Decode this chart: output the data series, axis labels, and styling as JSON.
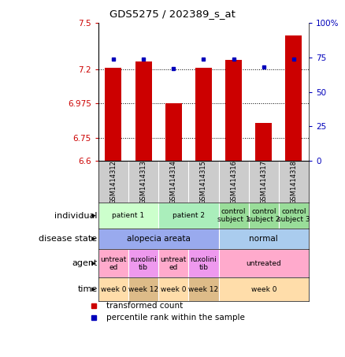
{
  "title": "GDS5275 / 202389_s_at",
  "samples": [
    "GSM1414312",
    "GSM1414313",
    "GSM1414314",
    "GSM1414315",
    "GSM1414316",
    "GSM1414317",
    "GSM1414318"
  ],
  "bar_values": [
    7.21,
    7.25,
    6.975,
    7.21,
    7.26,
    6.845,
    7.42
  ],
  "percentile_values": [
    74,
    74,
    67,
    74,
    74,
    68,
    74
  ],
  "ylim_left": [
    6.6,
    7.5
  ],
  "ylim_right": [
    0,
    100
  ],
  "yticks_left": [
    6.6,
    6.75,
    6.975,
    7.2,
    7.5
  ],
  "ytick_labels_left": [
    "6.6",
    "6.75",
    "6.975",
    "7.2",
    "7.5"
  ],
  "yticks_right": [
    0,
    25,
    50,
    75,
    100
  ],
  "ytick_labels_right": [
    "0",
    "25",
    "50",
    "75",
    "100%"
  ],
  "bar_color": "#cc0000",
  "dot_color": "#0000bb",
  "individual_groups": [
    {
      "label": "patient 1",
      "cols": [
        0,
        1
      ],
      "color": "#ccffcc"
    },
    {
      "label": "patient 2",
      "cols": [
        2,
        3
      ],
      "color": "#aaeebb"
    },
    {
      "label": "control\nsubject 1",
      "cols": [
        4
      ],
      "color": "#99dd99"
    },
    {
      "label": "control\nsubject 2",
      "cols": [
        5
      ],
      "color": "#99dd99"
    },
    {
      "label": "control\nsubject 3",
      "cols": [
        6
      ],
      "color": "#99dd99"
    }
  ],
  "disease_groups": [
    {
      "label": "alopecia areata",
      "cols": [
        0,
        1,
        2,
        3
      ],
      "color": "#99aaee"
    },
    {
      "label": "normal",
      "cols": [
        4,
        5,
        6
      ],
      "color": "#aaccee"
    }
  ],
  "agent_groups": [
    {
      "label": "untreat\ned",
      "cols": [
        0
      ],
      "color": "#ffaacc"
    },
    {
      "label": "ruxolini\ntib",
      "cols": [
        1
      ],
      "color": "#ee99ee"
    },
    {
      "label": "untreat\ned",
      "cols": [
        2
      ],
      "color": "#ffaacc"
    },
    {
      "label": "ruxolini\ntib",
      "cols": [
        3
      ],
      "color": "#ee99ee"
    },
    {
      "label": "untreated",
      "cols": [
        4,
        5,
        6
      ],
      "color": "#ffaacc"
    }
  ],
  "time_groups": [
    {
      "label": "week 0",
      "cols": [
        0
      ],
      "color": "#ffddaa"
    },
    {
      "label": "week 12",
      "cols": [
        1
      ],
      "color": "#ddbb88"
    },
    {
      "label": "week 0",
      "cols": [
        2
      ],
      "color": "#ffddaa"
    },
    {
      "label": "week 12",
      "cols": [
        3
      ],
      "color": "#ddbb88"
    },
    {
      "label": "week 0",
      "cols": [
        4,
        5,
        6
      ],
      "color": "#ffddaa"
    }
  ],
  "row_labels": [
    "individual",
    "disease state",
    "agent",
    "time"
  ],
  "legend_items": [
    {
      "label": "transformed count",
      "color": "#cc0000"
    },
    {
      "label": "percentile rank within the sample",
      "color": "#0000bb"
    }
  ],
  "sample_bg": "#cccccc"
}
